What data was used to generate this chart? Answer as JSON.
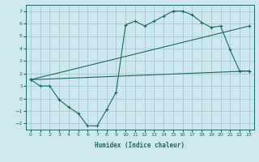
{
  "xlabel": "Humidex (Indice chaleur)",
  "ylabel": "",
  "bg_color": "#cce8ee",
  "grid_color": "#aacfd8",
  "line_color": "#1a6b62",
  "xlim": [
    -0.5,
    23.5
  ],
  "ylim": [
    -2.5,
    7.5
  ],
  "xticks": [
    0,
    1,
    2,
    3,
    4,
    5,
    6,
    7,
    8,
    9,
    10,
    11,
    12,
    13,
    14,
    15,
    16,
    17,
    18,
    19,
    20,
    21,
    22,
    23
  ],
  "yticks": [
    -2,
    -1,
    0,
    1,
    2,
    3,
    4,
    5,
    6,
    7
  ],
  "curve1_x": [
    0,
    1,
    2,
    3,
    4,
    5,
    6,
    7,
    8,
    9,
    10,
    11,
    12,
    13,
    14,
    15,
    16,
    17,
    18,
    19,
    20,
    21,
    22,
    23
  ],
  "curve1_y": [
    1.5,
    1.0,
    1.0,
    -0.1,
    -0.7,
    -1.2,
    -2.2,
    -2.2,
    -0.9,
    0.5,
    5.9,
    6.2,
    5.8,
    6.2,
    6.6,
    7.0,
    7.0,
    6.7,
    6.1,
    5.7,
    5.8,
    3.9,
    2.2,
    2.2
  ],
  "curve2_x": [
    0,
    23
  ],
  "curve2_y": [
    1.5,
    5.8
  ],
  "curve3_x": [
    0,
    23
  ],
  "curve3_y": [
    1.5,
    2.2
  ]
}
